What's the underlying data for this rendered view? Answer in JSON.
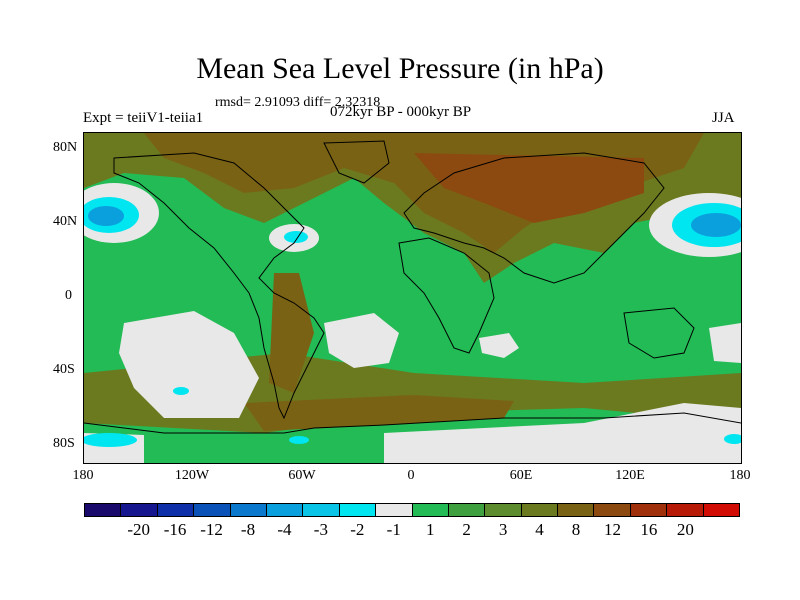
{
  "title": "Mean Sea Level Pressure (in hPa)",
  "stats": "rmsd= 2.91093 diff= 2.32318",
  "left_label": "Expt = teiiV1-teiia1",
  "center_label": "072kyr BP - 000kyr BP",
  "right_label": "JJA",
  "lat_ticks": [
    "80N",
    "40N",
    "0",
    "40S",
    "80S"
  ],
  "lon_ticks": [
    "180",
    "120W",
    "60W",
    "0",
    "60E",
    "120E",
    "180"
  ],
  "colorbar": {
    "colors": [
      "#1a0a6b",
      "#16168f",
      "#0f2fa8",
      "#0a52b8",
      "#0a78cc",
      "#0aa0dd",
      "#0ac4e8",
      "#00e6f0",
      "#e8e8e8",
      "#22bb55",
      "#3fa040",
      "#5c8c2e",
      "#6b7a1f",
      "#7a6214",
      "#8c4a10",
      "#a0300c",
      "#b81a08",
      "#d00c04"
    ],
    "labels": [
      "-20",
      "-16",
      "-12",
      "-8",
      "-4",
      "-3",
      "-2",
      "-1",
      "1",
      "2",
      "3",
      "4",
      "8",
      "12",
      "16",
      "20"
    ]
  }
}
